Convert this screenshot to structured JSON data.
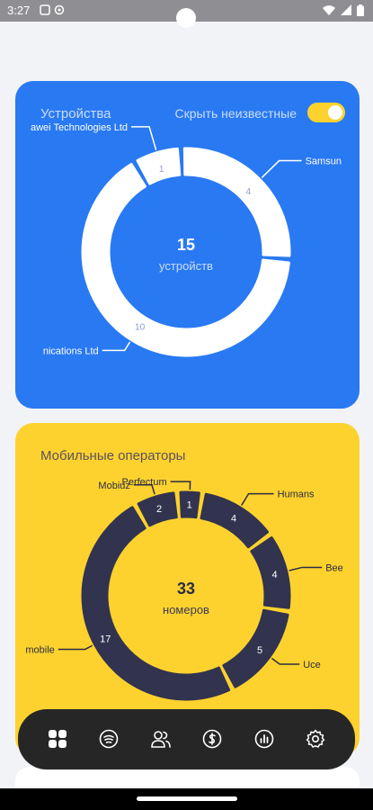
{
  "status_bar": {
    "time": "3:27",
    "left_icons": [
      "sim-icon",
      "sync-icon"
    ],
    "right_icons": [
      "wifi-icon",
      "signal-icon",
      "battery-icon"
    ]
  },
  "devices_card": {
    "title": "Устройства",
    "toggle_label": "Скрыть неизвестные",
    "toggle_on": true,
    "center_value": "15",
    "center_label": "устройств",
    "ring_color": "#ffffff",
    "card_color": "#2979f2",
    "chart_data": {
      "type": "pie",
      "style": "donut",
      "title": "",
      "total": 15,
      "series": [
        {
          "name": "Huawei Technologies Ltd",
          "value": 1,
          "label": "awei Technologies Ltd"
        },
        {
          "name": "Samsung",
          "value": 4,
          "label": "Samsun"
        },
        {
          "name": "Communications Ltd",
          "value": 10,
          "label": "nications Ltd"
        }
      ]
    }
  },
  "operators_card": {
    "title": "Мобильные операторы",
    "center_value": "33",
    "center_label": "номеров",
    "ring_color": "#32334f",
    "card_color": "#fdd22e",
    "chart_data": {
      "type": "pie",
      "style": "donut",
      "title": "",
      "total": 33,
      "series": [
        {
          "name": "Perfectum",
          "value": 1,
          "label": "Perfectum"
        },
        {
          "name": "Humans",
          "value": 4,
          "label": "Humans"
        },
        {
          "name": "Beeline",
          "value": 4,
          "label": "Bee"
        },
        {
          "name": "Ucell",
          "value": 5,
          "label": "Uce"
        },
        {
          "name": "Uzmobile",
          "value": 17,
          "label": "mobile"
        },
        {
          "name": "Mobiuz",
          "value": 2,
          "label": "Mobiuz"
        }
      ]
    }
  },
  "nav": {
    "items": [
      {
        "icon": "dashboard-icon",
        "active": true
      },
      {
        "icon": "sim-card-icon",
        "active": false
      },
      {
        "icon": "users-icon",
        "active": false
      },
      {
        "icon": "dollar-icon",
        "active": false
      },
      {
        "icon": "stats-icon",
        "active": false
      },
      {
        "icon": "settings-gear-icon",
        "active": false
      }
    ]
  }
}
